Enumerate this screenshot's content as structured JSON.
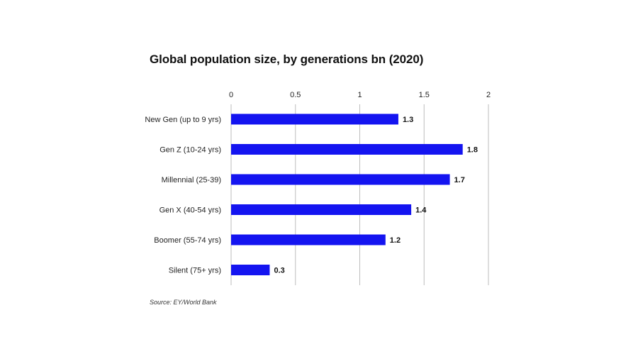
{
  "chart_data": {
    "type": "bar",
    "orientation": "horizontal",
    "title": "Global population size, by generations bn (2020)",
    "categories": [
      "New Gen (up to 9 yrs)",
      "Gen Z (10-24 yrs)",
      "Millennial (25-39)",
      "Gen X (40-54 yrs)",
      "Boomer (55-74 yrs)",
      "Silent (75+ yrs)"
    ],
    "values": [
      1.3,
      1.8,
      1.7,
      1.4,
      1.2,
      0.3
    ],
    "value_labels": [
      "1.3",
      "1.8",
      "1.7",
      "1.4",
      "1.2",
      "0.3"
    ],
    "xlim": [
      0,
      2
    ],
    "ticks": [
      0,
      0.5,
      1,
      1.5,
      2
    ],
    "tick_labels": [
      "0",
      "0.5",
      "1",
      "1.5",
      "2"
    ],
    "xlabel": "",
    "ylabel": "",
    "grid": true,
    "axis_position": "top",
    "legend": "none",
    "bar_color": "#1414f0",
    "grid_color": "#bdbdbd"
  },
  "source": "Source: EY/World Bank"
}
